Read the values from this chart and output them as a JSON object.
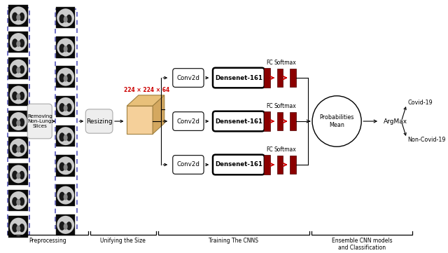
{
  "bg_color": "#ffffff",
  "preprocessing_label": "Preprocessing",
  "unifying_label": "Unifying the Size",
  "training_label": "Training The CNNS",
  "ensemble_label": "Ensemble CNN models\nand Classification",
  "removing_box_text": "Removing\nNon-Lung\nSlices",
  "resizing_box_text": "Resizing",
  "resize_dim_text": "224 × 224 × 64",
  "conv_text": "Conv2d",
  "densenet_text": "Densenet-161",
  "fc_text": "FC",
  "softmax_text": "Softmax",
  "prob_text": "Probabilities\nMean",
  "argmax_text": "ArgMax",
  "covid_text": "Covid-19",
  "noncovid_text": "Non-Covid-19",
  "accent_color": "#cc0000",
  "dashed_border_color": "#5555bb",
  "cube_face_front": "#f5d09a",
  "cube_face_top": "#e8c07a",
  "cube_face_right": "#d4a860",
  "cube_edge_color": "#a08040"
}
